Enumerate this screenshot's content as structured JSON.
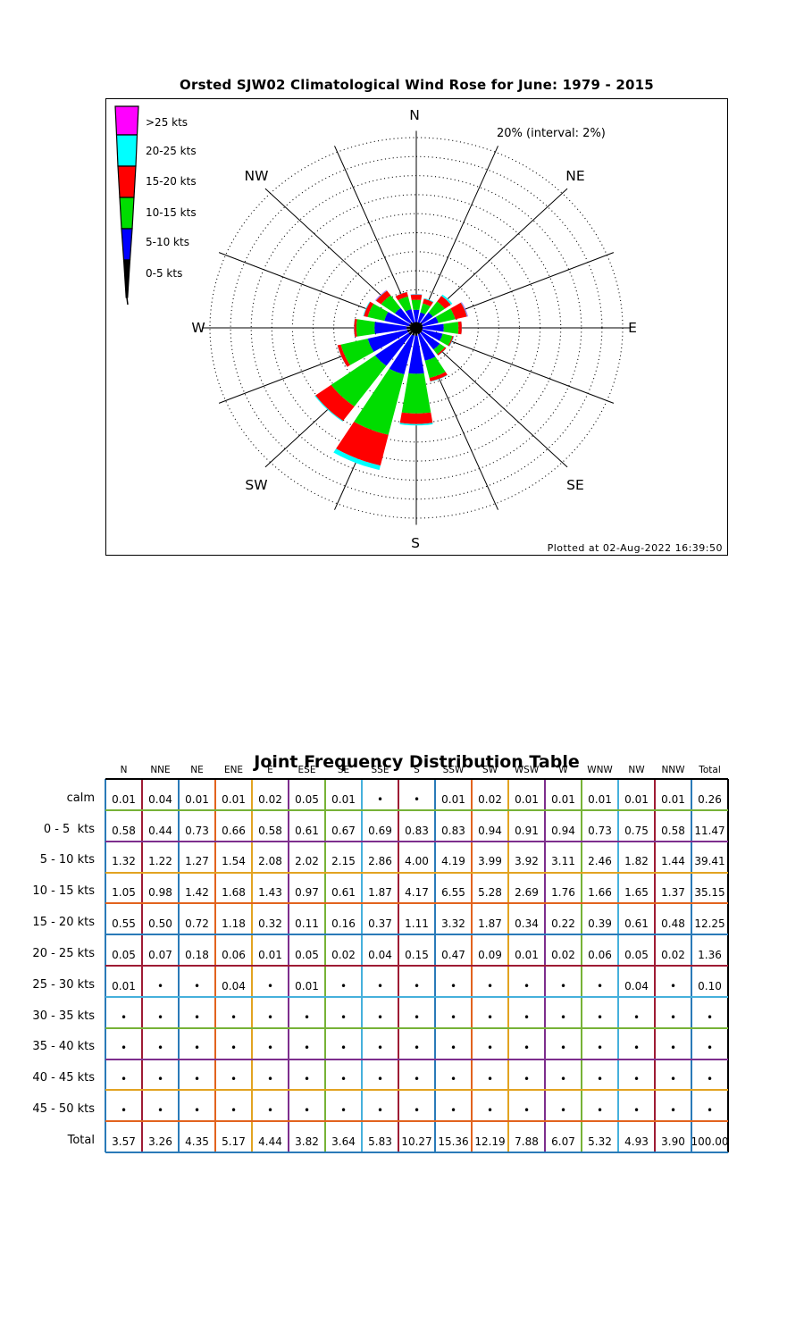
{
  "rose": {
    "title": "Orsted SJW02 Climatological Wind Rose for June: 1979 - 2015",
    "scale_label": "20% (interval: 2%)",
    "plotted_at": "Plotted at 02-Aug-2022 16:39:50",
    "compass": {
      "n": "N",
      "ne": "NE",
      "e": "E",
      "se": "SE",
      "s": "S",
      "sw": "SW",
      "w": "W",
      "nw": "NW"
    },
    "legend": [
      {
        "label": ">25 kts",
        "color": "#ff00ff"
      },
      {
        "label": "20-25 kts",
        "color": "#00ffff"
      },
      {
        "label": "15-20 kts",
        "color": "#ff0000"
      },
      {
        "label": "10-15 kts",
        "color": "#00dd00"
      },
      {
        "label": "5-10 kts",
        "color": "#0000ff"
      },
      {
        "label": "0-5 kts",
        "color": "#000000"
      }
    ]
  },
  "chart_data": {
    "type": "wind_rose",
    "title": "Orsted SJW02 Climatological Wind Rose for June: 1979 - 2015",
    "units": "percent frequency",
    "ring_interval_pct": 2,
    "ring_max_pct": 20,
    "directions": [
      "N",
      "NNE",
      "NE",
      "ENE",
      "E",
      "ESE",
      "SE",
      "SSE",
      "S",
      "SSW",
      "SW",
      "WSW",
      "W",
      "WNW",
      "NW",
      "NNW"
    ],
    "speed_bins": [
      {
        "label": "0-5 kts",
        "color": "#000000",
        "values": [
          0.58,
          0.44,
          0.73,
          0.66,
          0.58,
          0.61,
          0.67,
          0.69,
          0.83,
          0.83,
          0.94,
          0.91,
          0.94,
          0.73,
          0.75,
          0.58
        ]
      },
      {
        "label": "5-10 kts",
        "color": "#0000ff",
        "values": [
          1.32,
          1.22,
          1.27,
          1.54,
          2.08,
          2.02,
          2.15,
          2.86,
          4.0,
          4.19,
          3.99,
          3.92,
          3.11,
          2.46,
          1.82,
          1.44
        ]
      },
      {
        "label": "10-15 kts",
        "color": "#00dd00",
        "values": [
          1.05,
          0.98,
          1.42,
          1.68,
          1.43,
          0.97,
          0.61,
          1.87,
          4.17,
          6.55,
          5.28,
          2.69,
          1.76,
          1.66,
          1.65,
          1.37
        ]
      },
      {
        "label": "15-20 kts",
        "color": "#ff0000",
        "values": [
          0.55,
          0.5,
          0.72,
          1.18,
          0.32,
          0.11,
          0.16,
          0.37,
          1.11,
          3.32,
          1.87,
          0.34,
          0.22,
          0.39,
          0.61,
          0.48
        ]
      },
      {
        "label": "20-25 kts",
        "color": "#00ffff",
        "values": [
          0.05,
          0.07,
          0.18,
          0.06,
          0.01,
          0.05,
          0.02,
          0.04,
          0.15,
          0.47,
          0.09,
          0.01,
          0.02,
          0.06,
          0.05,
          0.02
        ]
      },
      {
        "label": ">25 kts",
        "color": "#ff00ff",
        "values": [
          0.01,
          0,
          0,
          0.04,
          0,
          0.01,
          0,
          0,
          0,
          0,
          0,
          0,
          0,
          0,
          0.04,
          0
        ]
      }
    ],
    "calm_frequencies": [
      0.01,
      0.04,
      0.01,
      0.01,
      0.02,
      0.05,
      0.01,
      0,
      0,
      0.01,
      0.02,
      0.01,
      0.01,
      0.01,
      0.01,
      0.01
    ],
    "calm_total": 0.26,
    "direction_totals": [
      3.57,
      3.26,
      4.35,
      5.17,
      4.44,
      3.82,
      3.64,
      5.83,
      10.27,
      15.36,
      12.19,
      7.88,
      6.07,
      5.32,
      4.93,
      3.9
    ],
    "grand_total": 100.0
  },
  "table": {
    "title": "Joint Frequency Distribution Table",
    "col_headers": [
      "N",
      "NNE",
      "NE",
      "ENE",
      "E",
      "ESE",
      "SE",
      "SSE",
      "S",
      "SSW",
      "SW",
      "WSW",
      "W",
      "WNW",
      "NW",
      "NNW",
      "Total"
    ],
    "rows": [
      {
        "label": "calm",
        "cells": [
          "0.01",
          "0.04",
          "0.01",
          "0.01",
          "0.02",
          "0.05",
          "0.01",
          "•",
          "•",
          "0.01",
          "0.02",
          "0.01",
          "0.01",
          "0.01",
          "0.01",
          "0.01",
          "0.26"
        ]
      },
      {
        "label": "0 - 5  kts",
        "cells": [
          "0.58",
          "0.44",
          "0.73",
          "0.66",
          "0.58",
          "0.61",
          "0.67",
          "0.69",
          "0.83",
          "0.83",
          "0.94",
          "0.91",
          "0.94",
          "0.73",
          "0.75",
          "0.58",
          "11.47"
        ]
      },
      {
        "label": "5 - 10 kts",
        "cells": [
          "1.32",
          "1.22",
          "1.27",
          "1.54",
          "2.08",
          "2.02",
          "2.15",
          "2.86",
          "4.00",
          "4.19",
          "3.99",
          "3.92",
          "3.11",
          "2.46",
          "1.82",
          "1.44",
          "39.41"
        ]
      },
      {
        "label": "10 - 15 kts",
        "cells": [
          "1.05",
          "0.98",
          "1.42",
          "1.68",
          "1.43",
          "0.97",
          "0.61",
          "1.87",
          "4.17",
          "6.55",
          "5.28",
          "2.69",
          "1.76",
          "1.66",
          "1.65",
          "1.37",
          "35.15"
        ]
      },
      {
        "label": "15 - 20 kts",
        "cells": [
          "0.55",
          "0.50",
          "0.72",
          "1.18",
          "0.32",
          "0.11",
          "0.16",
          "0.37",
          "1.11",
          "3.32",
          "1.87",
          "0.34",
          "0.22",
          "0.39",
          "0.61",
          "0.48",
          "12.25"
        ]
      },
      {
        "label": "20 - 25 kts",
        "cells": [
          "0.05",
          "0.07",
          "0.18",
          "0.06",
          "0.01",
          "0.05",
          "0.02",
          "0.04",
          "0.15",
          "0.47",
          "0.09",
          "0.01",
          "0.02",
          "0.06",
          "0.05",
          "0.02",
          "1.36"
        ]
      },
      {
        "label": "25 - 30 kts",
        "cells": [
          "0.01",
          "•",
          "•",
          "0.04",
          "•",
          "0.01",
          "•",
          "•",
          "•",
          "•",
          "•",
          "•",
          "•",
          "•",
          "0.04",
          "•",
          "0.10"
        ]
      },
      {
        "label": "30 - 35 kts",
        "cells": [
          "•",
          "•",
          "•",
          "•",
          "•",
          "•",
          "•",
          "•",
          "•",
          "•",
          "•",
          "•",
          "•",
          "•",
          "•",
          "•",
          "•"
        ]
      },
      {
        "label": "35 - 40 kts",
        "cells": [
          "•",
          "•",
          "•",
          "•",
          "•",
          "•",
          "•",
          "•",
          "•",
          "•",
          "•",
          "•",
          "•",
          "•",
          "•",
          "•",
          "•"
        ]
      },
      {
        "label": "40 - 45 kts",
        "cells": [
          "•",
          "•",
          "•",
          "•",
          "•",
          "•",
          "•",
          "•",
          "•",
          "•",
          "•",
          "•",
          "•",
          "•",
          "•",
          "•",
          "•"
        ]
      },
      {
        "label": "45 - 50 kts",
        "cells": [
          "•",
          "•",
          "•",
          "•",
          "•",
          "•",
          "•",
          "•",
          "•",
          "•",
          "•",
          "•",
          "•",
          "•",
          "•",
          "•",
          "•"
        ]
      },
      {
        "label": "Total",
        "cells": [
          "3.57",
          "3.26",
          "4.35",
          "5.17",
          "4.44",
          "3.82",
          "3.64",
          "5.83",
          "10.27",
          "15.36",
          "12.19",
          "7.88",
          "6.07",
          "5.32",
          "4.93",
          "3.90",
          "100.00"
        ]
      }
    ],
    "grid_colors": {
      "vertical_cycle": [
        "#9e1b34",
        "#2a7ab8",
        "#e2631e",
        "#e2a321",
        "#7d2e8d",
        "#77b237",
        "#46b0dc"
      ],
      "horizontal_cycle": [
        "#77b237",
        "#7d2e8d",
        "#e2a321",
        "#e2631e",
        "#2a7ab8",
        "#9e1b34",
        "#46b0dc"
      ],
      "outer_top": "#000000",
      "outer_right": "#000000",
      "outer_bottom": "#2a7ab8",
      "outer_left": "#2a7ab8"
    }
  }
}
